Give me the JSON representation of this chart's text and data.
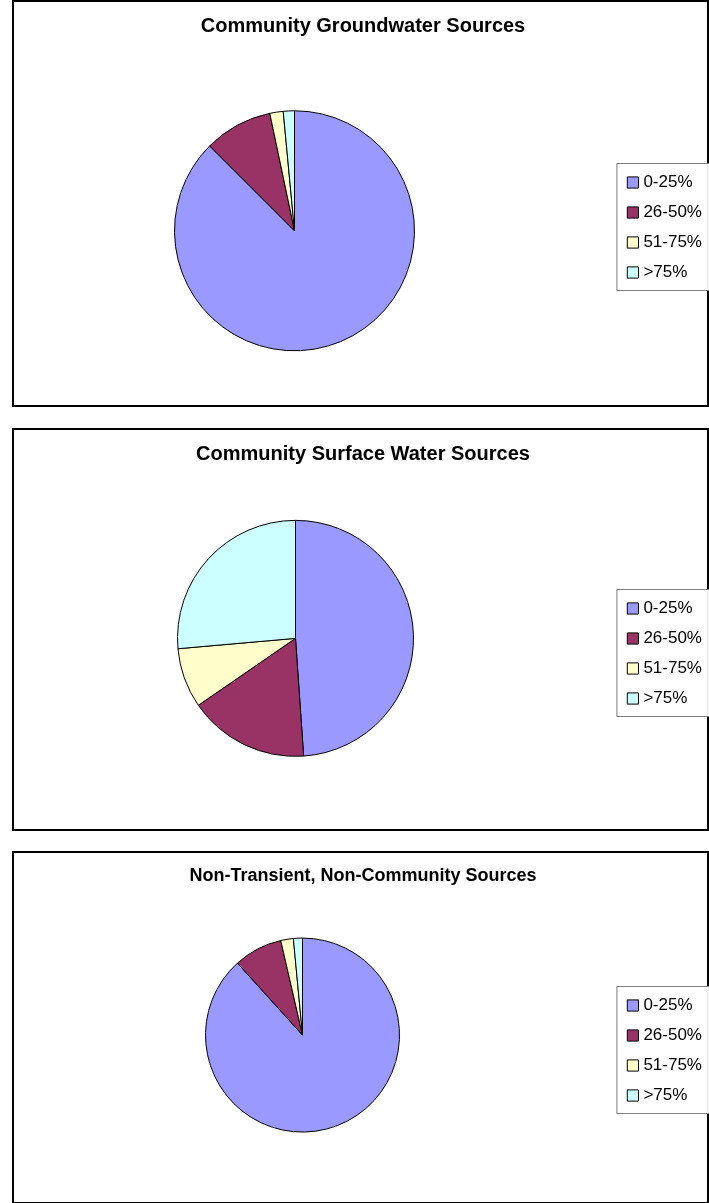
{
  "chart_data": [
    {
      "type": "pie",
      "title": "Community Groundwater Sources",
      "categories": [
        "0-25%",
        "26-50%",
        "51-75%",
        ">75%"
      ],
      "values": [
        87.5,
        9.2,
        1.8,
        1.5
      ],
      "colors": [
        "#9999ff",
        "#993366",
        "#ffffcc",
        "#ccffff"
      ],
      "legend": "right"
    },
    {
      "type": "pie",
      "title": "Community Surface Water Sources",
      "categories": [
        "0-25%",
        "26-50%",
        "51-75%",
        ">75%"
      ],
      "values": [
        48.9,
        16.5,
        8.2,
        26.4
      ],
      "colors": [
        "#9999ff",
        "#993366",
        "#ffffcc",
        "#ccffff"
      ],
      "legend": "right"
    },
    {
      "type": "pie",
      "title": "Non-Transient, Non-Community Sources",
      "categories": [
        "0-25%",
        "26-50%",
        "51-75%",
        ">75%"
      ],
      "values": [
        88.3,
        8.1,
        2.1,
        1.5
      ],
      "colors": [
        "#9999ff",
        "#993366",
        "#ffffcc",
        "#ccffff"
      ],
      "legend": "right"
    }
  ]
}
